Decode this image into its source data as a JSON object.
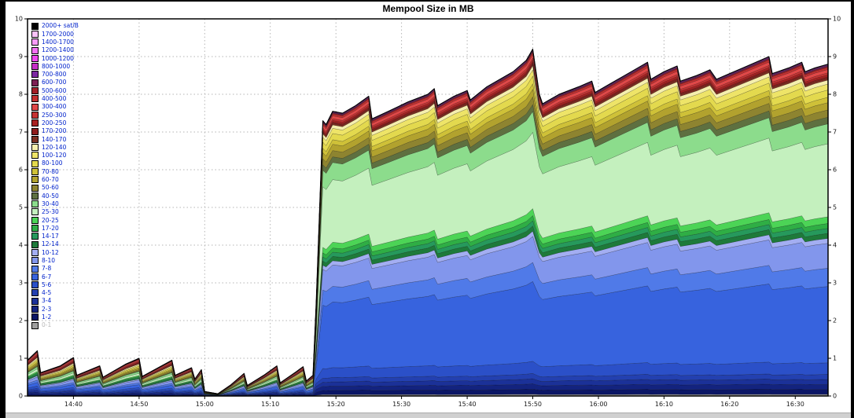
{
  "window": {
    "frame_color": "#000000",
    "surface_color": "#ffffff",
    "bottom_strip_color": "#d0d0d0"
  },
  "legend": {
    "link_color": "#0022cc",
    "disabled_labels": [
      "0-1"
    ],
    "disabled_color": "#b8b8b8"
  },
  "axes": {
    "grid_color": "#b5b5b5",
    "axis_color": "#000000",
    "label_color": "#1a1a1a"
  },
  "chart_data": {
    "type": "area",
    "stacked": true,
    "title": "Mempool Size in MB",
    "ylim": [
      0,
      10
    ],
    "y_ticks": [
      "0",
      "1",
      "2",
      "3",
      "4",
      "5",
      "6",
      "7",
      "8",
      "9",
      "10"
    ],
    "x_axis_minutes_range": [
      0,
      122
    ],
    "x_ticks": [
      {
        "t": 7,
        "label": "14:40"
      },
      {
        "t": 17,
        "label": "14:50"
      },
      {
        "t": 27,
        "label": "15:00"
      },
      {
        "t": 37,
        "label": "15:10"
      },
      {
        "t": 47,
        "label": "15:20"
      },
      {
        "t": 57,
        "label": "15:30"
      },
      {
        "t": 67,
        "label": "15:40"
      },
      {
        "t": 77,
        "label": "15:50"
      },
      {
        "t": 87,
        "label": "16:00"
      },
      {
        "t": 97,
        "label": "16:10"
      },
      {
        "t": 107,
        "label": "16:20"
      },
      {
        "t": 117,
        "label": "16:30"
      }
    ],
    "grid": true,
    "legend_position": "top-left",
    "regime": {
      "low_until_t": 43.5,
      "high_from_t": 45
    },
    "total_mb": {
      "x": [
        0,
        1.5,
        2,
        5,
        7,
        7.5,
        11,
        11.5,
        15,
        17,
        17.5,
        22,
        22.5,
        25,
        25.5,
        26.5,
        27,
        29,
        31,
        33,
        33.5,
        36,
        38,
        38.5,
        41,
        42,
        42.5,
        43.5,
        44,
        45,
        45.5,
        46.5,
        48,
        50,
        52,
        52.5,
        55,
        58,
        61,
        62,
        62.5,
        65,
        67,
        67.5,
        70,
        72,
        74,
        76,
        77,
        77.5,
        78,
        78.5,
        81,
        84,
        86,
        86.5,
        89,
        91,
        93,
        94.5,
        95,
        97,
        99,
        99.5,
        102,
        104,
        105,
        107,
        109,
        111,
        113,
        113.5,
        116,
        118,
        118.5,
        120,
        122
      ],
      "y": [
        0.95,
        1.2,
        0.62,
        0.8,
        1.02,
        0.55,
        0.8,
        0.5,
        0.85,
        1.0,
        0.52,
        0.95,
        0.55,
        0.75,
        0.45,
        0.7,
        0.12,
        0.06,
        0.3,
        0.6,
        0.28,
        0.55,
        0.8,
        0.35,
        0.65,
        0.78,
        0.4,
        0.55,
        2.5,
        7.3,
        7.2,
        7.55,
        7.5,
        7.7,
        7.95,
        7.35,
        7.55,
        7.8,
        8.0,
        8.15,
        7.7,
        7.95,
        8.1,
        7.85,
        8.2,
        8.4,
        8.6,
        8.9,
        9.2,
        8.6,
        8.0,
        7.75,
        8.0,
        8.2,
        8.35,
        8.05,
        8.3,
        8.5,
        8.7,
        8.85,
        8.4,
        8.6,
        8.75,
        8.35,
        8.5,
        8.65,
        8.4,
        8.55,
        8.7,
        8.85,
        9.0,
        8.55,
        8.7,
        8.85,
        8.6,
        8.7,
        8.8
      ]
    },
    "bands_bottom_to_top": [
      {
        "label": "0-1",
        "color": "#9e9e9e",
        "cum_frac_low": 0.01,
        "cum_frac_high": 0.005
      },
      {
        "label": "1-2",
        "color": "#0b1666",
        "cum_frac_low": 0.05,
        "cum_frac_high": 0.02
      },
      {
        "label": "2-3",
        "color": "#13237f",
        "cum_frac_low": 0.09,
        "cum_frac_high": 0.035
      },
      {
        "label": "3-4",
        "color": "#1b3198",
        "cum_frac_low": 0.13,
        "cum_frac_high": 0.05
      },
      {
        "label": "4-5",
        "color": "#2340b0",
        "cum_frac_low": 0.17,
        "cum_frac_high": 0.065
      },
      {
        "label": "5-6",
        "color": "#2b50c8",
        "cum_frac_low": 0.22,
        "cum_frac_high": 0.1
      },
      {
        "label": "6-7",
        "color": "#3763de",
        "cum_frac_low": 0.3,
        "cum_frac_high": 0.33
      },
      {
        "label": "7-8",
        "color": "#507ae8",
        "cum_frac_low": 0.35,
        "cum_frac_high": 0.385
      },
      {
        "label": "8-10",
        "color": "#8296ec",
        "cum_frac_low": 0.42,
        "cum_frac_high": 0.46
      },
      {
        "label": "10-12",
        "color": "#a3aef2",
        "cum_frac_low": 0.45,
        "cum_frac_high": 0.475
      },
      {
        "label": "12-14",
        "color": "#1e7a3a",
        "cum_frac_low": 0.475,
        "cum_frac_high": 0.49
      },
      {
        "label": "14-17",
        "color": "#26995c",
        "cum_frac_low": 0.5,
        "cum_frac_high": 0.505
      },
      {
        "label": "17-20",
        "color": "#2fae45",
        "cum_frac_low": 0.52,
        "cum_frac_high": 0.52
      },
      {
        "label": "20-25",
        "color": "#4cd456",
        "cum_frac_low": 0.545,
        "cum_frac_high": 0.54
      },
      {
        "label": "25-30",
        "color": "#c4f0be",
        "cum_frac_low": 0.6,
        "cum_frac_high": 0.76
      },
      {
        "label": "30-40",
        "color": "#8cdc8c",
        "cum_frac_low": 0.65,
        "cum_frac_high": 0.82
      },
      {
        "label": "40-50",
        "color": "#5e7040",
        "cum_frac_low": 0.67,
        "cum_frac_high": 0.84
      },
      {
        "label": "50-60",
        "color": "#8e8430",
        "cum_frac_low": 0.7,
        "cum_frac_high": 0.862
      },
      {
        "label": "60-70",
        "color": "#b2a22e",
        "cum_frac_low": 0.73,
        "cum_frac_high": 0.884
      },
      {
        "label": "70-80",
        "color": "#cfc138",
        "cum_frac_low": 0.755,
        "cum_frac_high": 0.9
      },
      {
        "label": "80-100",
        "color": "#e3d94e",
        "cum_frac_low": 0.79,
        "cum_frac_high": 0.922
      },
      {
        "label": "100-120",
        "color": "#eee468",
        "cum_frac_low": 0.82,
        "cum_frac_high": 0.94
      },
      {
        "label": "120-140",
        "color": "#f5efae",
        "cum_frac_low": 0.85,
        "cum_frac_high": 0.952
      },
      {
        "label": "140-170",
        "color": "#7c2f22",
        "cum_frac_low": 0.87,
        "cum_frac_high": 0.958
      },
      {
        "label": "170-200",
        "color": "#8f1d1d",
        "cum_frac_low": 0.89,
        "cum_frac_high": 0.962
      },
      {
        "label": "200-250",
        "color": "#a82222",
        "cum_frac_low": 0.915,
        "cum_frac_high": 0.968
      },
      {
        "label": "250-300",
        "color": "#c63333",
        "cum_frac_low": 0.935,
        "cum_frac_high": 0.974
      },
      {
        "label": "300-400",
        "color": "#e04848",
        "cum_frac_low": 0.96,
        "cum_frac_high": 0.984
      },
      {
        "label": "400-500",
        "color": "#c43030",
        "cum_frac_low": 0.975,
        "cum_frac_high": 0.99
      },
      {
        "label": "500-600",
        "color": "#a32028",
        "cum_frac_low": 0.982,
        "cum_frac_high": 0.993
      },
      {
        "label": "600-700",
        "color": "#7c2052",
        "cum_frac_low": 0.987,
        "cum_frac_high": 0.995
      },
      {
        "label": "700-800",
        "color": "#7b28a2",
        "cum_frac_low": 0.99,
        "cum_frac_high": 0.9965
      },
      {
        "label": "800-1000",
        "color": "#c62cc6",
        "cum_frac_low": 0.9925,
        "cum_frac_high": 0.9975
      },
      {
        "label": "1000-1200",
        "color": "#ee46ee",
        "cum_frac_low": 0.9945,
        "cum_frac_high": 0.9983
      },
      {
        "label": "1200-1400",
        "color": "#f370f3",
        "cum_frac_low": 0.996,
        "cum_frac_high": 0.999
      },
      {
        "label": "1400-1700",
        "color": "#f79af7",
        "cum_frac_low": 0.9975,
        "cum_frac_high": 0.9995
      },
      {
        "label": "1700-2000",
        "color": "#fbc2fb",
        "cum_frac_low": 0.9987,
        "cum_frac_high": 0.9998
      },
      {
        "label": "2000+ sat/B",
        "color": "#000000",
        "cum_frac_low": 1.0,
        "cum_frac_high": 1.0
      }
    ]
  }
}
